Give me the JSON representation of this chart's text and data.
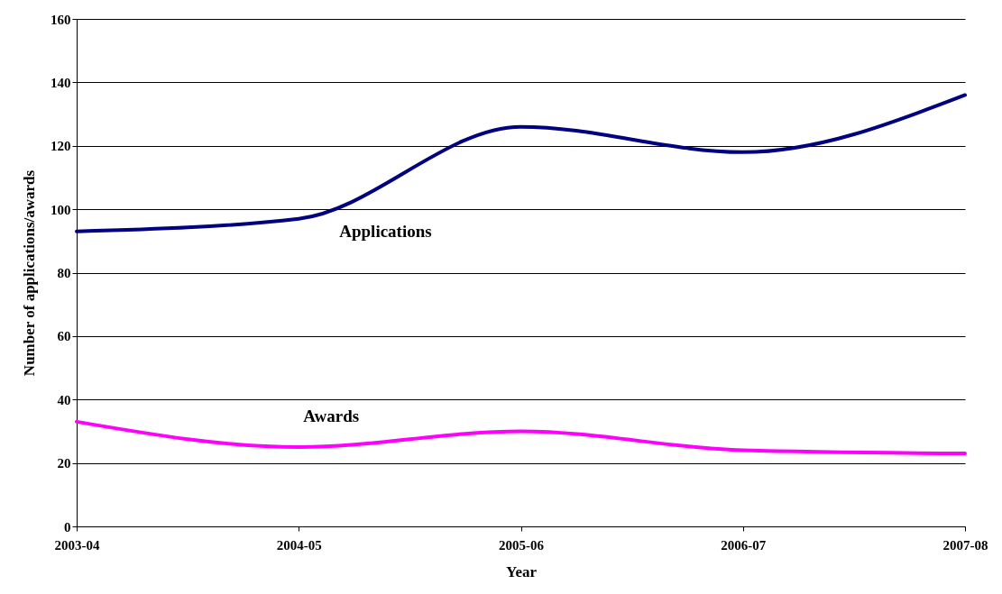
{
  "chart_data": {
    "type": "line",
    "xlabel": "Year",
    "ylabel": "Number of applications/awards",
    "categories": [
      "2003-04",
      "2004-05",
      "2005-06",
      "2006-07",
      "2007-08"
    ],
    "series": [
      {
        "name": "Applications",
        "color": "#000080",
        "values": [
          93,
          97,
          126,
          118,
          136
        ]
      },
      {
        "name": "Awards",
        "color": "#ff00ff",
        "values": [
          33,
          25,
          30,
          24,
          23
        ]
      }
    ],
    "ylim": [
      0,
      160
    ],
    "yticks": [
      0,
      20,
      40,
      60,
      80,
      100,
      120,
      140,
      160
    ],
    "grid": "y",
    "marker": "none",
    "line_style": "solid"
  }
}
